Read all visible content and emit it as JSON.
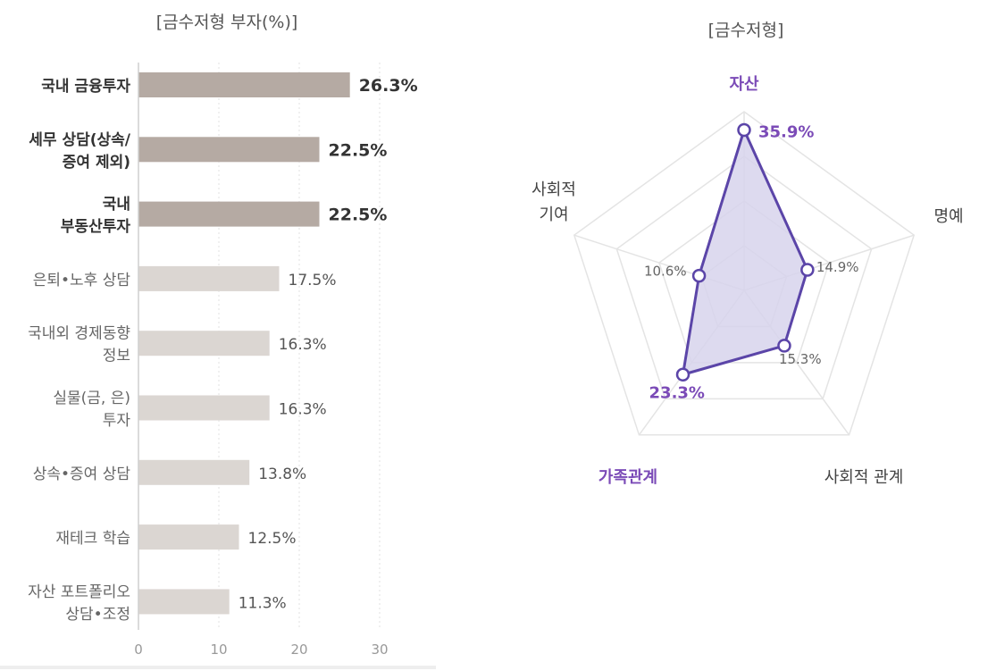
{
  "chart_data": [
    {
      "type": "bar",
      "orientation": "horizontal",
      "title": "[금수저형 부자(%)]",
      "categories": [
        "국내 금융투자",
        "세무 상담(상속/ 증여 제외)",
        "국내 부동산투자",
        "은퇴•노후 상담",
        "국내외 경제동향 정보",
        "실물(금, 은) 투자",
        "상속•증여 상담",
        "재테크 학습",
        "자산 포트폴리오 상담•조정"
      ],
      "category_lines": [
        [
          "국내 금융투자"
        ],
        [
          "세무 상담(상속/",
          "증여 제외)"
        ],
        [
          "국내",
          "부동산투자"
        ],
        [
          "은퇴•노후 상담"
        ],
        [
          "국내외 경제동향",
          "정보"
        ],
        [
          "실물(금, 은)",
          "투자"
        ],
        [
          "상속•증여 상담"
        ],
        [
          "재테크 학습"
        ],
        [
          "자산 포트폴리오",
          "상담•조정"
        ]
      ],
      "values": [
        26.3,
        22.5,
        22.5,
        17.5,
        16.3,
        16.3,
        13.8,
        12.5,
        11.3
      ],
      "value_labels": [
        "26.3%",
        "22.5%",
        "22.5%",
        "17.5%",
        "16.3%",
        "16.3%",
        "13.8%",
        "12.5%",
        "11.3%"
      ],
      "highlighted_count": 3,
      "xlim": [
        0,
        30
      ],
      "xticks": [
        "0",
        "10",
        "20",
        "30"
      ],
      "colors": {
        "highlight": "#b5aaa3",
        "normal": "#dbd6d2"
      }
    },
    {
      "type": "radar",
      "title": "[금수저형]",
      "axes": [
        {
          "name": "자산",
          "value": 35.9,
          "label": "35.9%",
          "highlight": true
        },
        {
          "name": "명예",
          "value": 14.9,
          "label": "14.9%",
          "highlight": false
        },
        {
          "name": "사회적 관계",
          "value": 15.3,
          "label": "15.3%",
          "highlight": false
        },
        {
          "name": "가족관계",
          "value": 23.3,
          "label": "23.3%",
          "highlight": true
        },
        {
          "name": "사회적 기여",
          "value": 10.6,
          "label": "10.6%",
          "highlight": false
        }
      ],
      "range": [
        0,
        40
      ],
      "colors": {
        "line": "#5b45a8",
        "fill": "#d7d3ec",
        "highlight_text": "#7b4bb7",
        "grid": "#e4e4e4"
      }
    }
  ]
}
